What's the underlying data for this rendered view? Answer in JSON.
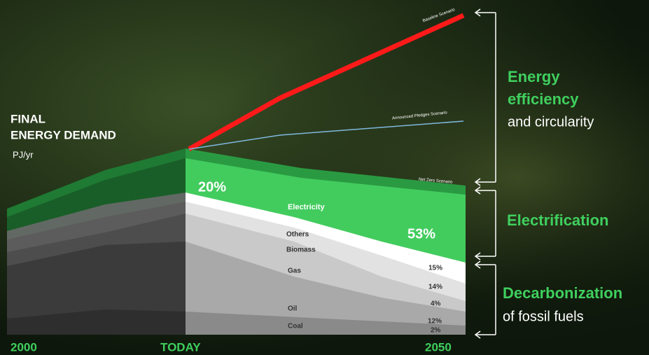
{
  "header": {
    "title_lines": [
      "FINAL",
      "ENERGY DEMAND"
    ],
    "unit": "PJ/yr"
  },
  "timeline": [
    "2000",
    "TODAY",
    "2050"
  ],
  "scenarios": [
    "Baseline Scenario",
    "Announced Pledges Scenario",
    "Net Zero Scenario"
  ],
  "share_today": "20%",
  "layers": [
    "Electricity",
    "Others",
    "Biomass",
    "Gas",
    "Oil",
    "Coal"
  ],
  "shares_2050": [
    "53%",
    "15%",
    "14%",
    "4%",
    "12%",
    "2%"
  ],
  "annotations": [
    {
      "title_lines": [
        "Energy",
        "efficiency"
      ],
      "sub": "and circularity"
    },
    {
      "title_lines": [
        "Electrification"
      ]
    },
    {
      "title_lines": [
        "Decarbonization"
      ],
      "sub": "of fossil fuels"
    }
  ]
}
